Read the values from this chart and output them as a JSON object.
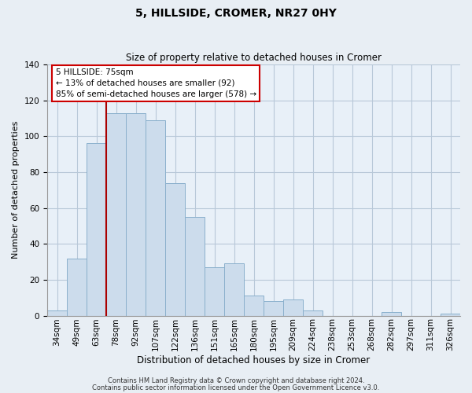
{
  "title": "5, HILLSIDE, CROMER, NR27 0HY",
  "subtitle": "Size of property relative to detached houses in Cromer",
  "xlabel": "Distribution of detached houses by size in Cromer",
  "ylabel": "Number of detached properties",
  "bar_color": "#ccdcec",
  "bar_edge_color": "#8ab0cc",
  "categories": [
    "34sqm",
    "49sqm",
    "63sqm",
    "78sqm",
    "92sqm",
    "107sqm",
    "122sqm",
    "136sqm",
    "151sqm",
    "165sqm",
    "180sqm",
    "195sqm",
    "209sqm",
    "224sqm",
    "238sqm",
    "253sqm",
    "268sqm",
    "282sqm",
    "297sqm",
    "311sqm",
    "326sqm"
  ],
  "values": [
    3,
    32,
    96,
    113,
    113,
    109,
    74,
    55,
    27,
    29,
    11,
    8,
    9,
    3,
    0,
    0,
    0,
    2,
    0,
    0,
    1
  ],
  "ylim": [
    0,
    140
  ],
  "yticks": [
    0,
    20,
    40,
    60,
    80,
    100,
    120,
    140
  ],
  "vline_index": 2.5,
  "vline_color": "#aa0000",
  "annotation_title": "5 HILLSIDE: 75sqm",
  "annotation_line1": "← 13% of detached houses are smaller (92)",
  "annotation_line2": "85% of semi-detached houses are larger (578) →",
  "annotation_box_facecolor": "#ffffff",
  "annotation_box_edgecolor": "#cc0000",
  "footer_line1": "Contains HM Land Registry data © Crown copyright and database right 2024.",
  "footer_line2": "Contains public sector information licensed under the Open Government Licence v3.0.",
  "background_color": "#e8eef4",
  "plot_bg_color": "#e8f0f8",
  "grid_color": "#b8c8d8",
  "title_fontsize": 10,
  "subtitle_fontsize": 8.5,
  "ylabel_fontsize": 8,
  "xlabel_fontsize": 8.5,
  "tick_fontsize": 7.5,
  "annotation_fontsize": 7.5,
  "footer_fontsize": 6
}
